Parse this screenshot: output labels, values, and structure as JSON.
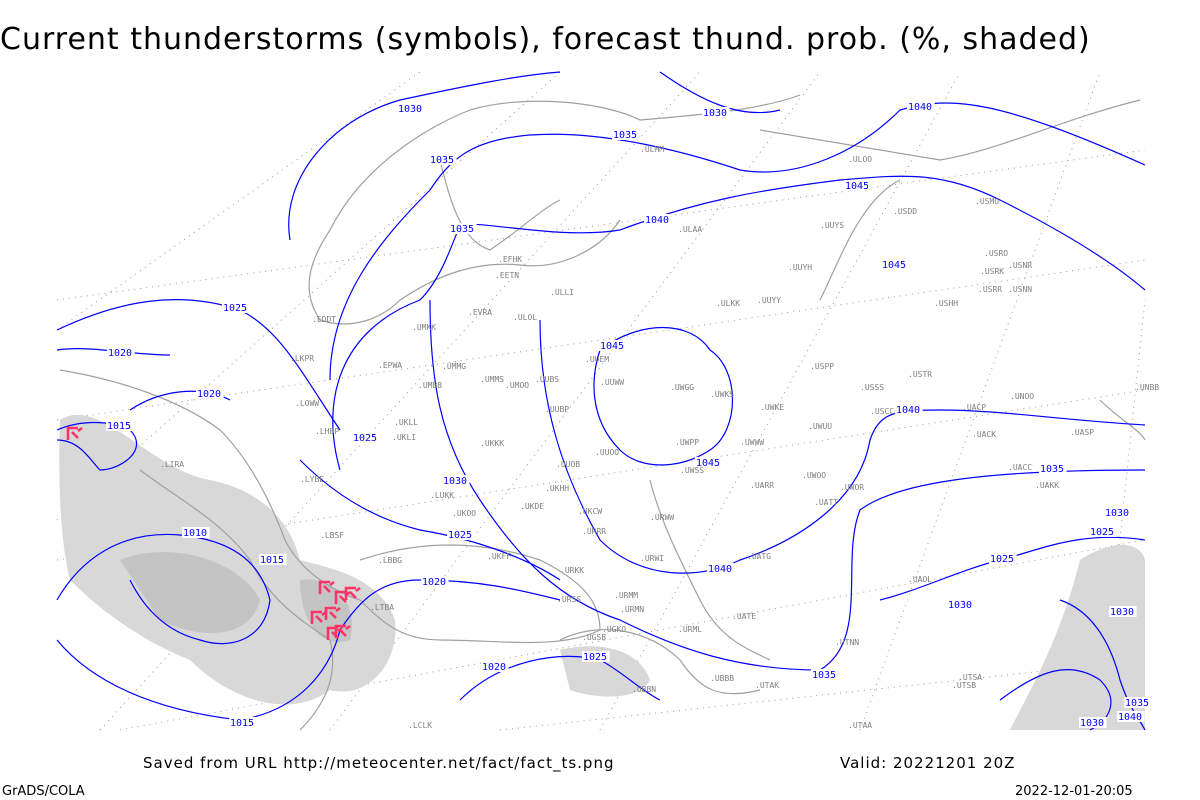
{
  "title": "Current thunderstorms (symbols), forecast thund. prob. (%, shaded)",
  "footer": {
    "saved_from": "Saved from URL http://meteocenter.net/fact/fact_ts.png",
    "valid": "Valid: 20221201 20Z",
    "software": "GrADS/COLA",
    "timestamp": "2022-12-01-20:05"
  },
  "colors": {
    "isobar": "#0000ff",
    "coastline": "#a0a0a0",
    "shading": "#d8d8d8",
    "thunderstorm_symbol": "#ff3366",
    "station_label": "#808080"
  },
  "isobar_labels": [
    "1030",
    "1030",
    "1040",
    "1035",
    "1035",
    "1035",
    "1040",
    "1045",
    "1045",
    "1025",
    "1020",
    "1045",
    "1020",
    "1015",
    "1025",
    "1040",
    "1045",
    "1030",
    "1035",
    "1030",
    "1025",
    "1010",
    "1015",
    "1025",
    "1040",
    "1020",
    "1025",
    "1030",
    "1025",
    "1020",
    "1035",
    "1015",
    "1035",
    "1030",
    "1040",
    "1030"
  ],
  "stations": [
    "ULMM",
    "ULOO",
    "USDD",
    "USMU",
    "ULAA",
    "UUYS",
    "UUYH",
    "USRO",
    "USRK",
    "USNR",
    "USRR",
    "USNN",
    "USHH",
    "ULLI",
    "EFHK",
    "EETN",
    "EVRA",
    "ULOL",
    "ULKK",
    "UUYY",
    "UMKK",
    "EDDT",
    "EPWA",
    "UMMG",
    "UMBB",
    "UMMS",
    "UMOO",
    "UUBS",
    "UUEM",
    "UUWW",
    "UWGG",
    "UWKS",
    "UWKE",
    "UWUU",
    "USSS",
    "USTR",
    "UNOO",
    "UNBB",
    "USCC",
    "UACP",
    "UACK",
    "UASP",
    "UKLL",
    "UKLI",
    "UKKK",
    "UUOO",
    "UWPP",
    "UWWW",
    "UWSS",
    "LKPR",
    "LOWW",
    "LHBP",
    "LIRA",
    "LYBE",
    "LUKK",
    "UKOO",
    "UKDE",
    "LBSF",
    "LBBG",
    "UKFF",
    "URKK",
    "URRR",
    "URWI",
    "URWW",
    "UATG",
    "UATT",
    "UWOO",
    "UARR",
    "UAOL",
    "UACC",
    "UAKK",
    "LTBA",
    "URSS",
    "UGSB",
    "UGKO",
    "URMM",
    "URMN",
    "URML",
    "UATE",
    "UBBB",
    "UTAK",
    "UTNN",
    "UTAA",
    "LCLK",
    "UUBP",
    "UKHH",
    "UKCW",
    "UUOB",
    "USPP",
    "UWOR",
    "UBBN",
    "UTSA",
    "UTSB"
  ],
  "thunderstorm_symbol_count": 8
}
